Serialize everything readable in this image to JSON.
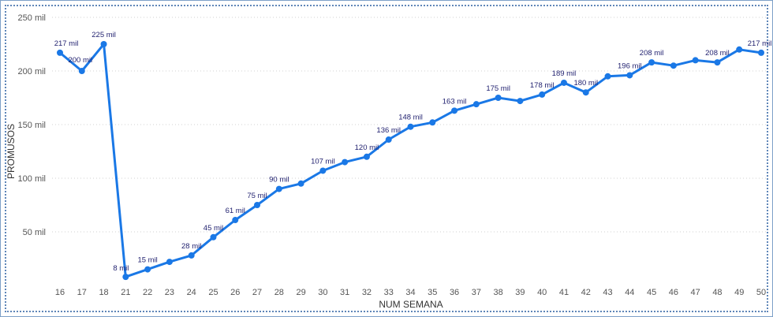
{
  "chart_data": {
    "type": "line",
    "xlabel": "NUM SEMANA",
    "ylabel": "PROMUSOS",
    "ylim": [
      0,
      250000
    ],
    "y_ticks": [
      50000,
      100000,
      150000,
      200000,
      250000
    ],
    "y_tick_labels": [
      "50 mil",
      "100 mil",
      "150 mil",
      "200 mil",
      "250 mil"
    ],
    "grid": true,
    "line_color": "#1a78e6",
    "label_color": "#1f1f6e",
    "categories": [
      "16",
      "17",
      "18",
      "21",
      "22",
      "23",
      "24",
      "25",
      "26",
      "27",
      "28",
      "29",
      "30",
      "31",
      "32",
      "33",
      "34",
      "35",
      "36",
      "37",
      "38",
      "39",
      "40",
      "41",
      "42",
      "43",
      "44",
      "45",
      "46",
      "47",
      "48",
      "49",
      "50"
    ],
    "series": [
      {
        "values": [
          217000,
          200000,
          225000,
          8000,
          15000,
          22000,
          28000,
          45000,
          61000,
          75000,
          90000,
          95000,
          107000,
          115000,
          120000,
          136000,
          148000,
          152000,
          163000,
          169000,
          175000,
          172000,
          178000,
          189000,
          180000,
          195000,
          196000,
          208000,
          205000,
          210000,
          208000,
          220000,
          217000
        ],
        "data_labels": [
          "217 mil",
          "200 mil",
          "225 mil",
          "8 mil",
          "15 mil",
          "",
          "28 mil",
          "45 mil",
          "61 mil",
          "75 mil",
          "90 mil",
          "",
          "107 mil",
          "",
          "120 mil",
          "136 mil",
          "148 mil",
          "",
          "163 mil",
          "",
          "175 mil",
          "",
          "178 mil",
          "189 mil",
          "180 mil",
          "",
          "196 mil",
          "208 mil",
          "",
          "",
          "208 mil",
          "",
          "217 mil"
        ]
      }
    ]
  }
}
